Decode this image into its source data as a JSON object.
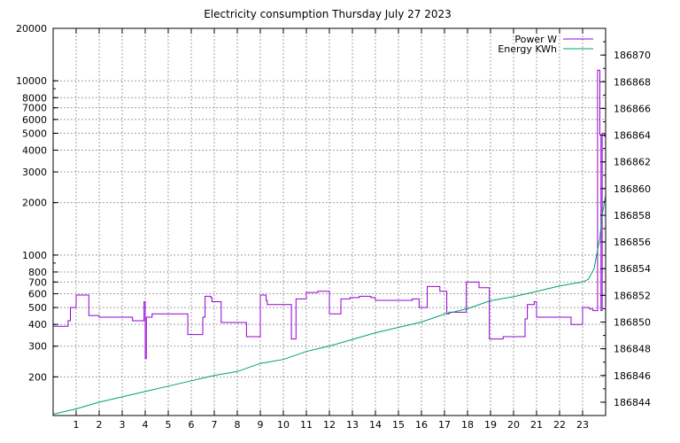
{
  "chart_data": {
    "type": "line",
    "title": "Electricity consumption Thursday July 27 2023",
    "xlabel": "",
    "ylabel": "",
    "y2label": "",
    "grid": true,
    "legend_position": "top-right",
    "x_ticks": [
      1,
      2,
      3,
      4,
      5,
      6,
      7,
      8,
      9,
      10,
      11,
      12,
      13,
      14,
      15,
      16,
      17,
      18,
      19,
      20,
      21,
      22,
      23
    ],
    "xlim": [
      0,
      24
    ],
    "y_left": {
      "scale": "log",
      "ylim": [
        120,
        20000
      ],
      "ticks": [
        200,
        300,
        400,
        500,
        600,
        700,
        800,
        1000,
        2000,
        3000,
        4000,
        5000,
        6000,
        7000,
        8000,
        10000,
        20000
      ]
    },
    "y_right": {
      "scale": "linear",
      "ylim": [
        186843.0,
        186872.0
      ],
      "ticks": [
        186844,
        186846,
        186848,
        186850,
        186852,
        186854,
        186856,
        186858,
        186860,
        186862,
        186864,
        186866,
        186868,
        186870
      ]
    },
    "series": [
      {
        "name": "Power W",
        "axis": "left",
        "color": "#9400d3",
        "step": true,
        "x": [
          0,
          0.6,
          0.65,
          0.75,
          1.0,
          1.05,
          1.55,
          2.0,
          3.2,
          3.45,
          3.95,
          4.0,
          4.05,
          4.3,
          5.35,
          5.85,
          6.5,
          6.6,
          6.85,
          6.9,
          7.3,
          7.35,
          7.95,
          8.4,
          8.45,
          9.0,
          9.15,
          9.25,
          9.3,
          10.35,
          10.5,
          10.55,
          11.0,
          11.5,
          12.0,
          12.5,
          12.9,
          13.3,
          13.8,
          14.0,
          14.8,
          15.6,
          15.9,
          16.25,
          16.8,
          17.1,
          17.2,
          17.5,
          17.95,
          18.05,
          18.5,
          18.95,
          19.45,
          19.55,
          19.7,
          20.5,
          20.6,
          20.9,
          21.0,
          21.5,
          22.0,
          22.5,
          23.0,
          23.3,
          23.45,
          23.65,
          23.75,
          23.8,
          23.85,
          23.95,
          24.0
        ],
        "values": [
          390,
          390,
          420,
          500,
          590,
          590,
          450,
          440,
          440,
          420,
          540,
          255,
          440,
          460,
          460,
          350,
          440,
          580,
          570,
          540,
          410,
          410,
          410,
          340,
          340,
          590,
          590,
          550,
          520,
          330,
          330,
          560,
          610,
          620,
          460,
          560,
          570,
          580,
          570,
          550,
          550,
          560,
          500,
          660,
          620,
          460,
          470,
          470,
          700,
          700,
          650,
          330,
          330,
          340,
          340,
          430,
          520,
          540,
          440,
          440,
          440,
          400,
          500,
          490,
          480,
          11500,
          4900,
          480,
          5000,
          4800,
          520
        ]
      },
      {
        "name": "Energy KWh",
        "axis": "right",
        "color": "#009e73",
        "step": false,
        "x": [
          0,
          1.0,
          2.0,
          3.0,
          4.0,
          5.0,
          6.0,
          7.0,
          8.0,
          9.0,
          10.0,
          11.0,
          12.0,
          13.0,
          14.0,
          15.0,
          16.0,
          17.0,
          18.0,
          19.0,
          20.0,
          21.0,
          22.0,
          23.0,
          23.25,
          23.5,
          23.65,
          23.75,
          23.85,
          24.0
        ],
        "values": [
          186843.1,
          186843.5,
          186844.0,
          186844.4,
          186844.8,
          186845.2,
          186845.6,
          186846.0,
          186846.3,
          186846.9,
          186847.2,
          186847.8,
          186848.2,
          186848.7,
          186849.2,
          186849.6,
          186850.0,
          186850.6,
          186851.0,
          186851.6,
          186851.9,
          186852.3,
          186852.7,
          186853.0,
          186853.2,
          186854.0,
          186855.4,
          186856.3,
          186858.0,
          186859.5
        ]
      }
    ]
  }
}
